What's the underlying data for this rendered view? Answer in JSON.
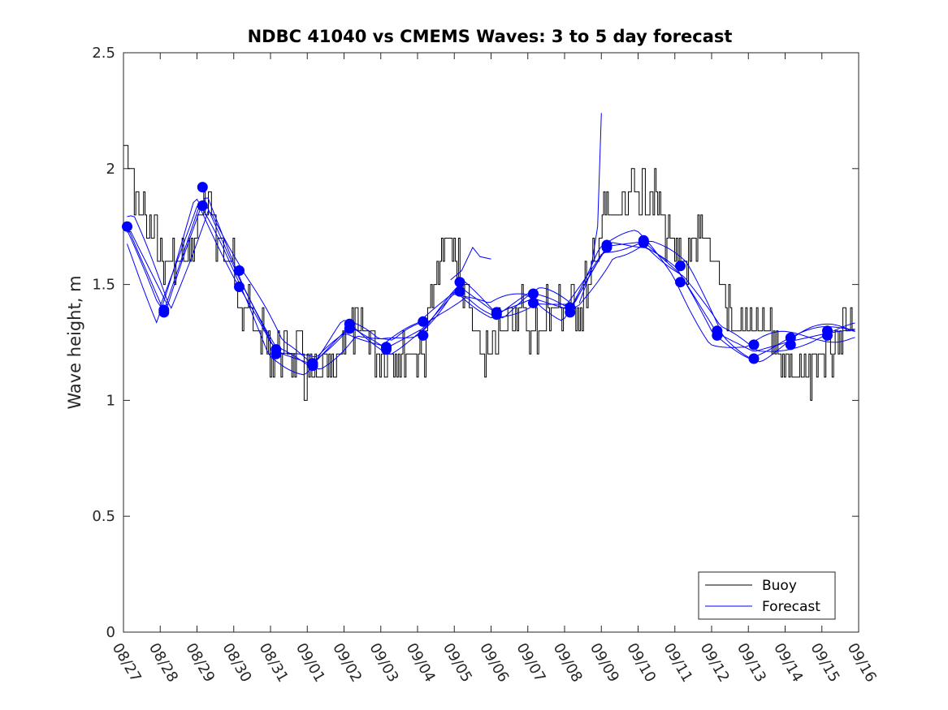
{
  "chart_data": {
    "type": "line",
    "title": "NDBC 41040 vs CMEMS Waves: 3 to 5 day forecast",
    "xlabel": "",
    "ylabel": "Wave height, m",
    "xlim": [
      "08/27",
      "09/16"
    ],
    "ylim": [
      0,
      2.5
    ],
    "x_tick_labels": [
      "08/27",
      "08/28",
      "08/29",
      "08/30",
      "08/31",
      "09/01",
      "09/02",
      "09/03",
      "09/04",
      "09/05",
      "09/06",
      "09/07",
      "09/08",
      "09/09",
      "09/10",
      "09/11",
      "09/12",
      "09/13",
      "09/14",
      "09/15",
      "09/16"
    ],
    "y_tick_labels": [
      "0",
      "0.5",
      "1",
      "1.5",
      "2",
      "2.5"
    ],
    "y_ticks": [
      0,
      0.5,
      1,
      1.5,
      2,
      2.5
    ],
    "grid": false,
    "legend_position": "bottom-right",
    "series": [
      {
        "name": "Buoy",
        "color": "#000000",
        "style": "step-noisy",
        "x_days": [
          0,
          0.3,
          0.6,
          1.0,
          1.4,
          1.8,
          2.1,
          2.5,
          2.9,
          3.3,
          3.7,
          4.1,
          4.5,
          4.9,
          5.3,
          5.7,
          6.0,
          6.4,
          6.8,
          7.2,
          7.6,
          8.0,
          8.2,
          8.4,
          8.7,
          9.0,
          9.3,
          9.6,
          10.0,
          10.3,
          10.6,
          10.9,
          11.2,
          11.5,
          11.9,
          12.2,
          12.5,
          12.8,
          13.0,
          13.3,
          13.6,
          13.9,
          14.2,
          14.5,
          14.8,
          15.1,
          15.4,
          15.7,
          16.0,
          16.3,
          16.6,
          16.9,
          17.2,
          17.5,
          17.8,
          18.1,
          18.4,
          18.7,
          19.0,
          19.3,
          19.6,
          20.0
        ],
        "y": [
          2.1,
          1.9,
          1.75,
          1.65,
          1.6,
          1.65,
          1.8,
          1.75,
          1.6,
          1.4,
          1.3,
          1.2,
          1.15,
          1.15,
          1.1,
          1.05,
          1.3,
          1.35,
          1.25,
          1.2,
          1.2,
          1.2,
          1.25,
          1.45,
          1.65,
          1.65,
          1.45,
          1.25,
          1.2,
          1.3,
          1.4,
          1.35,
          1.3,
          1.35,
          1.4,
          1.35,
          1.45,
          1.6,
          1.75,
          1.8,
          1.8,
          1.9,
          1.9,
          1.85,
          1.7,
          1.6,
          1.55,
          1.7,
          1.65,
          1.5,
          1.3,
          1.3,
          1.3,
          1.35,
          1.25,
          1.15,
          1.1,
          1.15,
          1.2,
          1.2,
          1.3,
          1.35
        ]
      },
      {
        "name": "Forecast",
        "color": "#0000ff",
        "markers_x_days": [
          0.1,
          1.1,
          1.1,
          2.15,
          2.15,
          3.15,
          3.15,
          4.15,
          4.15,
          5.15,
          5.15,
          6.15,
          6.15,
          7.15,
          7.15,
          8.15,
          8.15,
          9.15,
          9.15,
          10.15,
          10.15,
          11.15,
          11.15,
          12.15,
          12.15,
          13.15,
          13.15,
          14.15,
          14.15,
          15.15,
          15.15,
          16.15,
          16.15,
          17.15,
          17.15,
          18.15,
          18.15,
          19.15,
          19.15
        ],
        "markers_y": [
          1.75,
          1.39,
          1.38,
          1.92,
          1.84,
          1.56,
          1.49,
          1.22,
          1.2,
          1.16,
          1.15,
          1.33,
          1.31,
          1.23,
          1.22,
          1.34,
          1.28,
          1.51,
          1.47,
          1.38,
          1.37,
          1.46,
          1.42,
          1.4,
          1.38,
          1.67,
          1.66,
          1.69,
          1.68,
          1.58,
          1.51,
          1.3,
          1.28,
          1.24,
          1.18,
          1.27,
          1.24,
          1.3,
          1.28
        ]
      }
    ]
  },
  "legend": {
    "items": [
      {
        "label": "Buoy",
        "color": "#000000"
      },
      {
        "label": "Forecast",
        "color": "#0000ff"
      }
    ]
  }
}
